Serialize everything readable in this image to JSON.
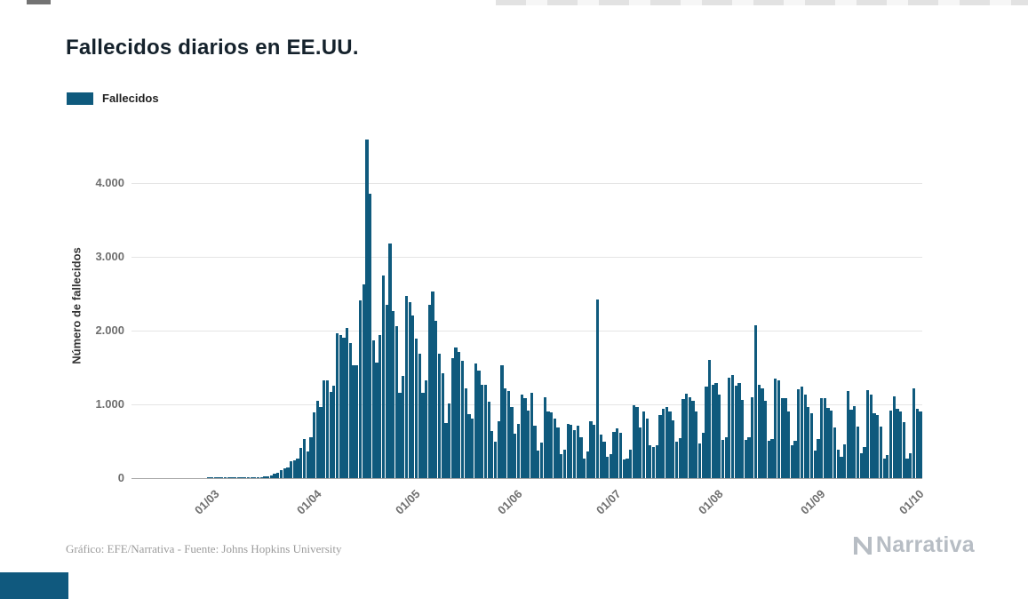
{
  "title": "Fallecidos diarios en EE.UU.",
  "legend": {
    "label": "Fallecidos",
    "color": "#0f5a7d"
  },
  "footer": {
    "credit": "Gráfico: EFE/Narrativa - Fuente: Johns Hopkins University"
  },
  "brand": {
    "name": "Narrativa"
  },
  "chart_data": {
    "type": "bar",
    "title": "Fallecidos diarios en EE.UU.",
    "xlabel": "",
    "ylabel": "Número de fallecidos",
    "series_name": "Fallecidos",
    "bar_color": "#0f5a7d",
    "grid": true,
    "legend_position": "top-left",
    "start_date": "2020-02-05",
    "ylim": [
      0,
      4675
    ],
    "yticks": [
      {
        "value": 0,
        "label": "0"
      },
      {
        "value": 1000,
        "label": "1.000"
      },
      {
        "value": 2000,
        "label": "2.000"
      },
      {
        "value": 3000,
        "label": "3.000"
      },
      {
        "value": 4000,
        "label": "4.000"
      }
    ],
    "xticks": [
      {
        "index": 25,
        "label": "01/03"
      },
      {
        "index": 56,
        "label": "01/04"
      },
      {
        "index": 86,
        "label": "01/05"
      },
      {
        "index": 117,
        "label": "01/06"
      },
      {
        "index": 147,
        "label": "01/07"
      },
      {
        "index": 178,
        "label": "01/08"
      },
      {
        "index": 209,
        "label": "01/09"
      },
      {
        "index": 239,
        "label": "01/10"
      }
    ],
    "values": [
      0,
      0,
      0,
      0,
      0,
      0,
      0,
      0,
      0,
      0,
      0,
      0,
      0,
      0,
      0,
      0,
      0,
      0,
      0,
      0,
      0,
      0,
      0,
      1,
      1,
      1,
      2,
      4,
      3,
      3,
      4,
      5,
      4,
      5,
      8,
      9,
      12,
      10,
      15,
      18,
      23,
      26,
      42,
      57,
      71,
      112,
      133,
      150,
      225,
      247,
      268,
      411,
      525,
      363,
      558,
      895,
      1049,
      968,
      1321,
      1331,
      1165,
      1255,
      1970,
      1940,
      1900,
      2035,
      1830,
      1528,
      1535,
      2408,
      2621,
      4591,
      3857,
      1867,
      1561,
      1940,
      2751,
      2354,
      3179,
      2270,
      2065,
      1157,
      1384,
      2470,
      2390,
      2201,
      1897,
      1691,
      1154,
      1324,
      2350,
      2528,
      2129,
      1687,
      1422,
      750,
      1008,
      1630,
      1772,
      1715,
      1595,
      1218,
      865,
      808,
      1552,
      1461,
      1263,
      1260,
      1035,
      638,
      500,
      774,
      1535,
      1223,
      1175,
      960,
      605,
      730,
      1134,
      1083,
      919,
      1155,
      709,
      373,
      480,
      1093,
      906,
      891,
      802,
      683,
      330,
      380,
      740,
      722,
      654,
      712,
      560,
      267,
      361,
      767,
      722,
      2425,
      590,
      500,
      285,
      330,
      630,
      680,
      613,
      252,
      265,
      391,
      990,
      960,
      690,
      900,
      803,
      450,
      420,
      450,
      858,
      940,
      963,
      908,
      780,
      490,
      540,
      1070,
      1150,
      1100,
      1050,
      900,
      470,
      620,
      1244,
      1600,
      1270,
      1290,
      1130,
      515,
      560,
      1360,
      1400,
      1250,
      1290,
      1060,
      520,
      560,
      1100,
      2070,
      1270,
      1220,
      1050,
      510,
      530,
      1350,
      1330,
      1090,
      1080,
      900,
      440,
      510,
      1200,
      1240,
      1130,
      970,
      880,
      370,
      530,
      1080,
      1090,
      950,
      920,
      690,
      390,
      290,
      460,
      1180,
      930,
      980,
      700,
      340,
      420,
      1190,
      1130,
      880,
      850,
      700,
      270,
      310,
      920,
      1110,
      940,
      900,
      760,
      270,
      340,
      1220,
      940,
      900
    ]
  }
}
